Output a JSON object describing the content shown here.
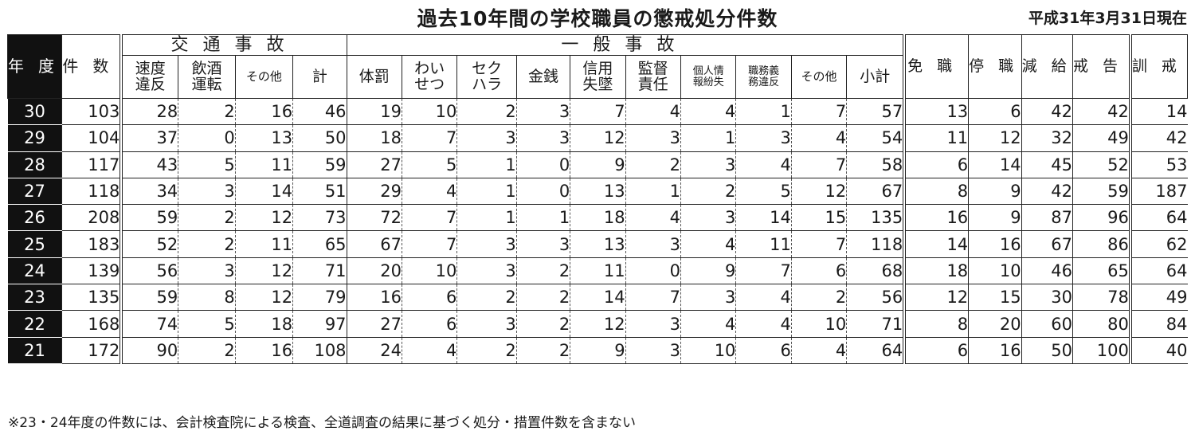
{
  "title": "過去10年間の学校職員の懲戒処分件数",
  "date": "平成31年3月31日現在",
  "header": {
    "year": "年度",
    "count": "件数",
    "traffic": "交通事故",
    "general": "一般事故",
    "traffic_cols": [
      "速度違反",
      "飲酒運転",
      "その他",
      "計"
    ],
    "general_cols": [
      "体罰",
      "わいせつ",
      "セクハラ",
      "金銭",
      "信用失墜",
      "監督責任",
      "個人情報紛失",
      "職務義務違反",
      "その他",
      "小計"
    ],
    "punish_cols": [
      "免職",
      "停職",
      "減給",
      "戒告"
    ],
    "kunkai": "訓戒"
  },
  "rows": [
    {
      "year": "30",
      "count": "103",
      "traffic": [
        "28",
        "2",
        "16",
        "46"
      ],
      "general": [
        "19",
        "10",
        "2",
        "3",
        "7",
        "4",
        "4",
        "1",
        "7",
        "57"
      ],
      "punish": [
        "13",
        "6",
        "42",
        "42"
      ],
      "kunkai": "14"
    },
    {
      "year": "29",
      "count": "104",
      "traffic": [
        "37",
        "0",
        "13",
        "50"
      ],
      "general": [
        "18",
        "7",
        "3",
        "3",
        "12",
        "3",
        "1",
        "3",
        "4",
        "54"
      ],
      "punish": [
        "11",
        "12",
        "32",
        "49"
      ],
      "kunkai": "42"
    },
    {
      "year": "28",
      "count": "117",
      "traffic": [
        "43",
        "5",
        "11",
        "59"
      ],
      "general": [
        "27",
        "5",
        "1",
        "0",
        "9",
        "2",
        "3",
        "4",
        "7",
        "58"
      ],
      "punish": [
        "6",
        "14",
        "45",
        "52"
      ],
      "kunkai": "53"
    },
    {
      "year": "27",
      "count": "118",
      "traffic": [
        "34",
        "3",
        "14",
        "51"
      ],
      "general": [
        "29",
        "4",
        "1",
        "0",
        "13",
        "1",
        "2",
        "5",
        "12",
        "67"
      ],
      "punish": [
        "8",
        "9",
        "42",
        "59"
      ],
      "kunkai": "187"
    },
    {
      "year": "26",
      "count": "208",
      "traffic": [
        "59",
        "2",
        "12",
        "73"
      ],
      "general": [
        "72",
        "7",
        "1",
        "1",
        "18",
        "4",
        "3",
        "14",
        "15",
        "135"
      ],
      "punish": [
        "16",
        "9",
        "87",
        "96"
      ],
      "kunkai": "64"
    },
    {
      "year": "25",
      "count": "183",
      "traffic": [
        "52",
        "2",
        "11",
        "65"
      ],
      "general": [
        "67",
        "7",
        "3",
        "3",
        "13",
        "3",
        "4",
        "11",
        "7",
        "118"
      ],
      "punish": [
        "14",
        "16",
        "67",
        "86"
      ],
      "kunkai": "62"
    },
    {
      "year": "24",
      "count": "139",
      "traffic": [
        "56",
        "3",
        "12",
        "71"
      ],
      "general": [
        "20",
        "10",
        "3",
        "2",
        "11",
        "0",
        "9",
        "7",
        "6",
        "68"
      ],
      "punish": [
        "18",
        "10",
        "46",
        "65"
      ],
      "kunkai": "64"
    },
    {
      "year": "23",
      "count": "135",
      "traffic": [
        "59",
        "8",
        "12",
        "79"
      ],
      "general": [
        "16",
        "6",
        "2",
        "2",
        "14",
        "7",
        "3",
        "4",
        "2",
        "56"
      ],
      "punish": [
        "12",
        "15",
        "30",
        "78"
      ],
      "kunkai": "49"
    },
    {
      "year": "22",
      "count": "168",
      "traffic": [
        "74",
        "5",
        "18",
        "97"
      ],
      "general": [
        "27",
        "6",
        "3",
        "2",
        "12",
        "3",
        "4",
        "4",
        "10",
        "71"
      ],
      "punish": [
        "8",
        "20",
        "60",
        "80"
      ],
      "kunkai": "84"
    },
    {
      "year": "21",
      "count": "172",
      "traffic": [
        "90",
        "2",
        "16",
        "108"
      ],
      "general": [
        "24",
        "4",
        "2",
        "2",
        "9",
        "3",
        "10",
        "6",
        "4",
        "64"
      ],
      "punish": [
        "6",
        "16",
        "50",
        "100"
      ],
      "kunkai": "40"
    }
  ],
  "note": "※23・24年度の件数には、会計検査院による検査、全道調査の結果に基づく処分・措置件数を含まない"
}
